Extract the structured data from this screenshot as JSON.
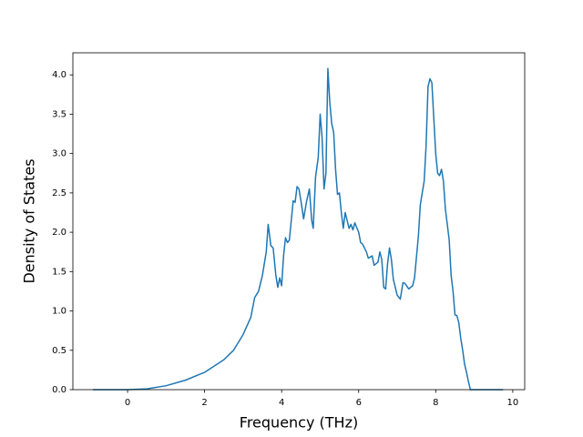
{
  "chart_data": {
    "type": "line",
    "xlabel": "Frequency (THz)",
    "ylabel": "Density of States",
    "x": [
      -0.9,
      0,
      0.5,
      1,
      1.5,
      2,
      2.5,
      2.75,
      3,
      3.2,
      3.3,
      3.4,
      3.5,
      3.6,
      3.65,
      3.72,
      3.78,
      3.85,
      3.9,
      3.95,
      4.0,
      4.05,
      4.1,
      4.15,
      4.2,
      4.3,
      4.35,
      4.4,
      4.45,
      4.5,
      4.57,
      4.65,
      4.72,
      4.78,
      4.82,
      4.88,
      4.95,
      5.0,
      5.05,
      5.1,
      5.15,
      5.2,
      5.25,
      5.3,
      5.35,
      5.4,
      5.45,
      5.5,
      5.55,
      5.6,
      5.65,
      5.7,
      5.75,
      5.8,
      5.85,
      5.9,
      6.0,
      6.05,
      6.1,
      6.2,
      6.25,
      6.35,
      6.4,
      6.5,
      6.55,
      6.6,
      6.65,
      6.7,
      6.75,
      6.8,
      6.85,
      6.9,
      7.0,
      7.08,
      7.15,
      7.2,
      7.3,
      7.4,
      7.45,
      7.55,
      7.6,
      7.7,
      7.75,
      7.8,
      7.85,
      7.9,
      8.0,
      8.05,
      8.1,
      8.15,
      8.2,
      8.25,
      8.35,
      8.4,
      8.45,
      8.5,
      8.55,
      8.6,
      8.65,
      8.7,
      8.75,
      8.8,
      8.85,
      8.9,
      9.75
    ],
    "values": [
      0,
      0,
      0.01,
      0.05,
      0.12,
      0.22,
      0.38,
      0.5,
      0.7,
      0.92,
      1.17,
      1.25,
      1.45,
      1.75,
      2.1,
      1.83,
      1.8,
      1.45,
      1.3,
      1.42,
      1.32,
      1.7,
      1.93,
      1.87,
      1.9,
      2.4,
      2.38,
      2.58,
      2.55,
      2.4,
      2.17,
      2.4,
      2.55,
      2.15,
      2.05,
      2.7,
      2.95,
      3.5,
      3.2,
      2.55,
      2.75,
      4.08,
      3.65,
      3.38,
      3.27,
      2.8,
      2.48,
      2.5,
      2.25,
      2.05,
      2.25,
      2.15,
      2.05,
      2.1,
      2.03,
      2.12,
      2.0,
      1.87,
      1.85,
      1.75,
      1.67,
      1.7,
      1.58,
      1.62,
      1.75,
      1.65,
      1.3,
      1.28,
      1.6,
      1.8,
      1.65,
      1.4,
      1.2,
      1.15,
      1.36,
      1.35,
      1.28,
      1.32,
      1.42,
      1.95,
      2.35,
      2.65,
      3.1,
      3.85,
      3.95,
      3.9,
      3.0,
      2.75,
      2.72,
      2.8,
      2.65,
      2.3,
      1.9,
      1.45,
      1.25,
      0.95,
      0.94,
      0.85,
      0.65,
      0.5,
      0.32,
      0.22,
      0.1,
      0,
      0
    ],
    "color": "#1f77b4",
    "xlim": [
      -1.42,
      10.31
    ],
    "xticks": [
      0,
      2,
      4,
      6,
      8,
      10
    ],
    "ylim": [
      0,
      4.28
    ],
    "yticks": [
      {
        "value": 0,
        "label": "0.0"
      },
      {
        "value": 0.5,
        "label": "0.5"
      },
      {
        "value": 1,
        "label": "1.0"
      },
      {
        "value": 1.5,
        "label": "1.5"
      },
      {
        "value": 2,
        "label": "2.0"
      },
      {
        "value": 2.5,
        "label": "2.5"
      },
      {
        "value": 3,
        "label": "3.0"
      },
      {
        "value": 3.5,
        "label": "3.5"
      },
      {
        "value": 4,
        "label": "4.0"
      }
    ]
  }
}
